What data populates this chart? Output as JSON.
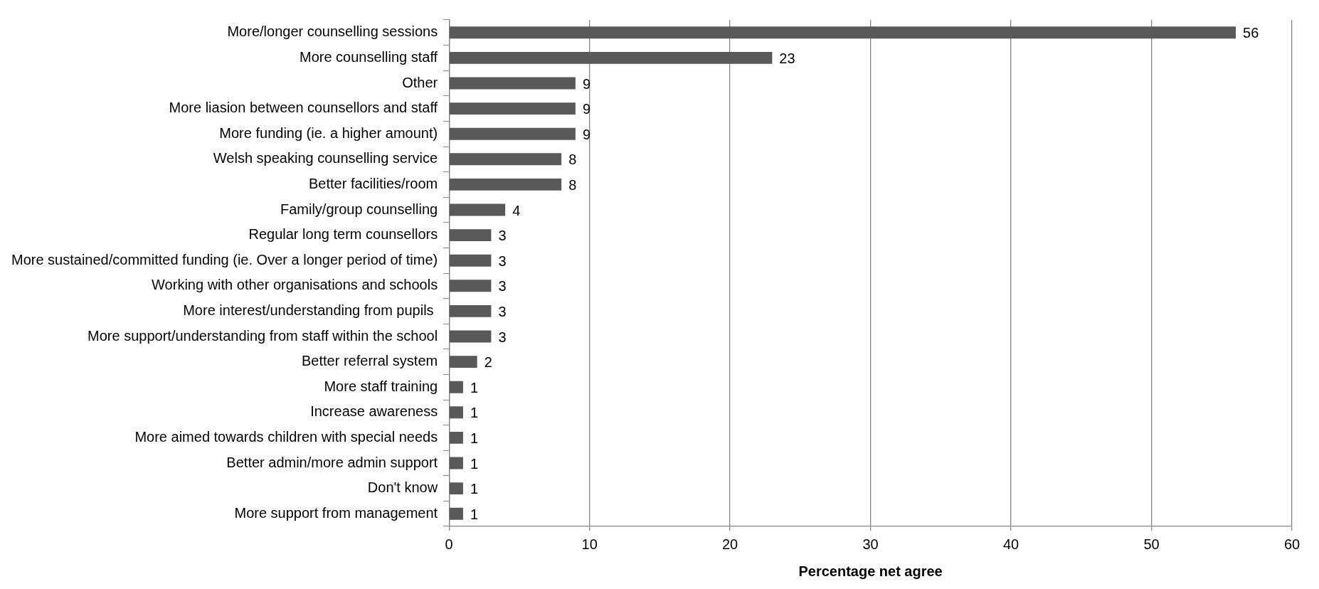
{
  "chart_data": {
    "type": "bar",
    "orientation": "horizontal",
    "xlabel": "Percentage net agree",
    "categories": [
      "More/longer counselling sessions",
      "More counselling staff",
      "Other",
      "More liasion between counsellors and staff",
      "More funding (ie. a higher amount)",
      "Welsh speaking counselling service",
      "Better facilities/room",
      "Family/group counselling",
      "Regular long term counsellors",
      "More sustained/committed funding (ie. Over a longer period of time)",
      "Working with other organisations and schools",
      "More interest/understanding from pupils ",
      "More support/understanding from staff within the school",
      "Better referral system",
      "More staff training",
      "Increase awareness",
      "More aimed towards children with special needs",
      "Better admin/more admin support",
      "Don't know",
      "More support from management"
    ],
    "values": [
      56,
      23,
      9,
      9,
      9,
      8,
      8,
      4,
      3,
      3,
      3,
      3,
      3,
      2,
      1,
      1,
      1,
      1,
      1,
      1
    ],
    "color": "#595959",
    "xlim": [
      0,
      60
    ],
    "xticks": [
      0,
      10,
      20,
      30,
      40,
      50,
      60
    ],
    "grid": "x",
    "data_labels": true,
    "legend": false
  }
}
